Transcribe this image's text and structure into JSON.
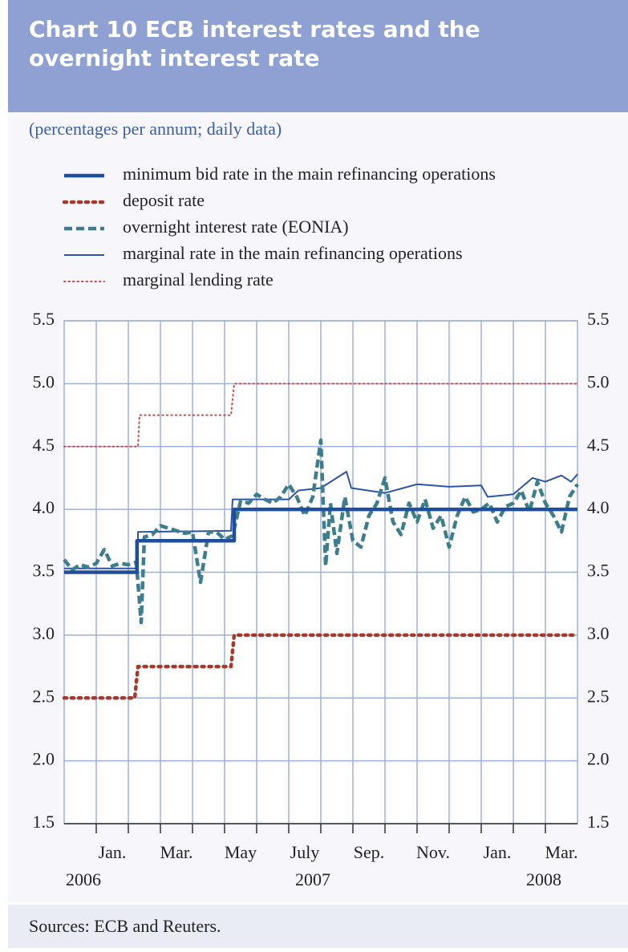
{
  "chart_data": {
    "type": "line",
    "title": "Chart 10 ECB interest rates and the",
    "title_line2": "overnight interest rate",
    "subtitle": "(percentages per annum; daily data)",
    "source": "Sources: ECB and Reuters.",
    "xlim": [
      0,
      16
    ],
    "xgrid": [
      1,
      2,
      3,
      4,
      5,
      6,
      7,
      8,
      9,
      10,
      11,
      12,
      13,
      14,
      15
    ],
    "xticks": [
      {
        "value": 1.5,
        "label": "Jan."
      },
      {
        "value": 3.5,
        "label": "Mar."
      },
      {
        "value": 5.5,
        "label": "May"
      },
      {
        "value": 7.5,
        "label": "July"
      },
      {
        "value": 9.5,
        "label": "Sep."
      },
      {
        "value": 11.5,
        "label": "Nov."
      },
      {
        "value": 13.5,
        "label": "Jan."
      },
      {
        "value": 15.5,
        "label": "Mar."
      }
    ],
    "year_labels": [
      {
        "value": 0.05,
        "label": "2006"
      },
      {
        "value": 7.2,
        "label": "2007"
      },
      {
        "value": 14.4,
        "label": "2008"
      }
    ],
    "ylim": [
      1.5,
      5.5
    ],
    "yticks": [
      1.5,
      {
        "value": 2,
        "label": "2.0"
      },
      2.5,
      {
        "value": 3,
        "label": "3.0"
      },
      3.5,
      {
        "value": 4,
        "label": "4.0"
      },
      4.5,
      {
        "value": 5,
        "label": "5.0"
      },
      5.5
    ],
    "y2lim": [
      1.5,
      5.5
    ],
    "y2ticks": [
      1.5,
      {
        "value": 2,
        "label": "2.0"
      },
      2.5,
      {
        "value": 3,
        "label": "3.0"
      },
      3.5,
      {
        "value": 4,
        "label": "4.0"
      },
      4.5,
      {
        "value": 5,
        "label": "5.0"
      },
      5.5
    ],
    "grid": true,
    "series": [
      {
        "name": "minimum bid rate in the main refinancing operations",
        "color": "#1f4e9c",
        "line_style": "solid",
        "weight": "bold",
        "x": [
          0,
          2.27,
          2.27,
          5.3,
          5.3,
          16
        ],
        "values": [
          3.5,
          3.5,
          3.75,
          3.75,
          4.0,
          4.0
        ]
      },
      {
        "name": "deposit rate",
        "color": "#a8382c",
        "line_style": "dotted",
        "weight": "bold",
        "x": [
          0,
          2.2,
          2.3,
          5.2,
          5.3,
          16
        ],
        "values": [
          2.5,
          2.5,
          2.75,
          2.75,
          3.0,
          3.0
        ]
      },
      {
        "name": "overnight interest rate (EONIA)",
        "color": "#3d7d8c",
        "line_style": "dashed",
        "weight": "bold",
        "x": [
          0,
          0.25,
          0.5,
          0.75,
          1,
          1.25,
          1.5,
          1.75,
          2,
          2.25,
          2.4,
          2.5,
          2.75,
          3,
          3.25,
          3.5,
          3.75,
          4,
          4.25,
          4.5,
          4.75,
          5,
          5.25,
          5.5,
          5.75,
          6,
          6.25,
          6.5,
          6.75,
          7,
          7.25,
          7.5,
          7.75,
          8,
          8.15,
          8.3,
          8.5,
          8.75,
          9,
          9.25,
          9.5,
          9.75,
          10,
          10.25,
          10.5,
          10.75,
          11,
          11.25,
          11.5,
          11.75,
          12,
          12.25,
          12.5,
          12.75,
          13,
          13.25,
          13.5,
          13.75,
          14,
          14.25,
          14.5,
          14.75,
          15,
          15.25,
          15.5,
          15.75,
          16
        ],
        "values": [
          3.6,
          3.52,
          3.56,
          3.54,
          3.57,
          3.68,
          3.55,
          3.57,
          3.56,
          3.58,
          3.1,
          3.78,
          3.8,
          3.87,
          3.85,
          3.83,
          3.81,
          3.82,
          3.42,
          3.82,
          3.82,
          3.76,
          3.79,
          4.07,
          4.05,
          4.12,
          4.08,
          4.05,
          4.1,
          4.2,
          4.1,
          3.95,
          4.1,
          4.55,
          3.55,
          4.05,
          3.65,
          4.1,
          3.75,
          3.7,
          3.95,
          4.05,
          4.25,
          3.9,
          3.8,
          4.05,
          3.9,
          4.08,
          3.85,
          3.95,
          3.7,
          3.95,
          4.1,
          3.98,
          4.0,
          4.05,
          3.9,
          4.02,
          4.05,
          4.15,
          3.98,
          4.22,
          4.05,
          3.95,
          3.82,
          4.1,
          4.2
        ]
      },
      {
        "name": "marginal rate in the main refinancing operations",
        "color": "#2c55a8",
        "line_style": "solid",
        "weight": "thin",
        "x": [
          0,
          2.3,
          2.3,
          5.2,
          5.25,
          7.0,
          7.3,
          8.0,
          8.8,
          8.95,
          10,
          11,
          12,
          13,
          13.2,
          14,
          14.6,
          15,
          15.5,
          15.8,
          16
        ],
        "values": [
          3.53,
          3.53,
          3.82,
          3.83,
          4.08,
          4.08,
          4.15,
          4.17,
          4.3,
          4.17,
          4.13,
          4.2,
          4.18,
          4.19,
          4.1,
          4.12,
          4.25,
          4.22,
          4.27,
          4.22,
          4.28
        ]
      },
      {
        "name": "marginal lending rate",
        "color": "#c0504d",
        "line_style": "dotted",
        "weight": "thin",
        "x": [
          0,
          2.3,
          2.35,
          5.2,
          5.3,
          16
        ],
        "values": [
          4.5,
          4.5,
          4.75,
          4.75,
          5.0,
          5.0
        ]
      }
    ]
  }
}
